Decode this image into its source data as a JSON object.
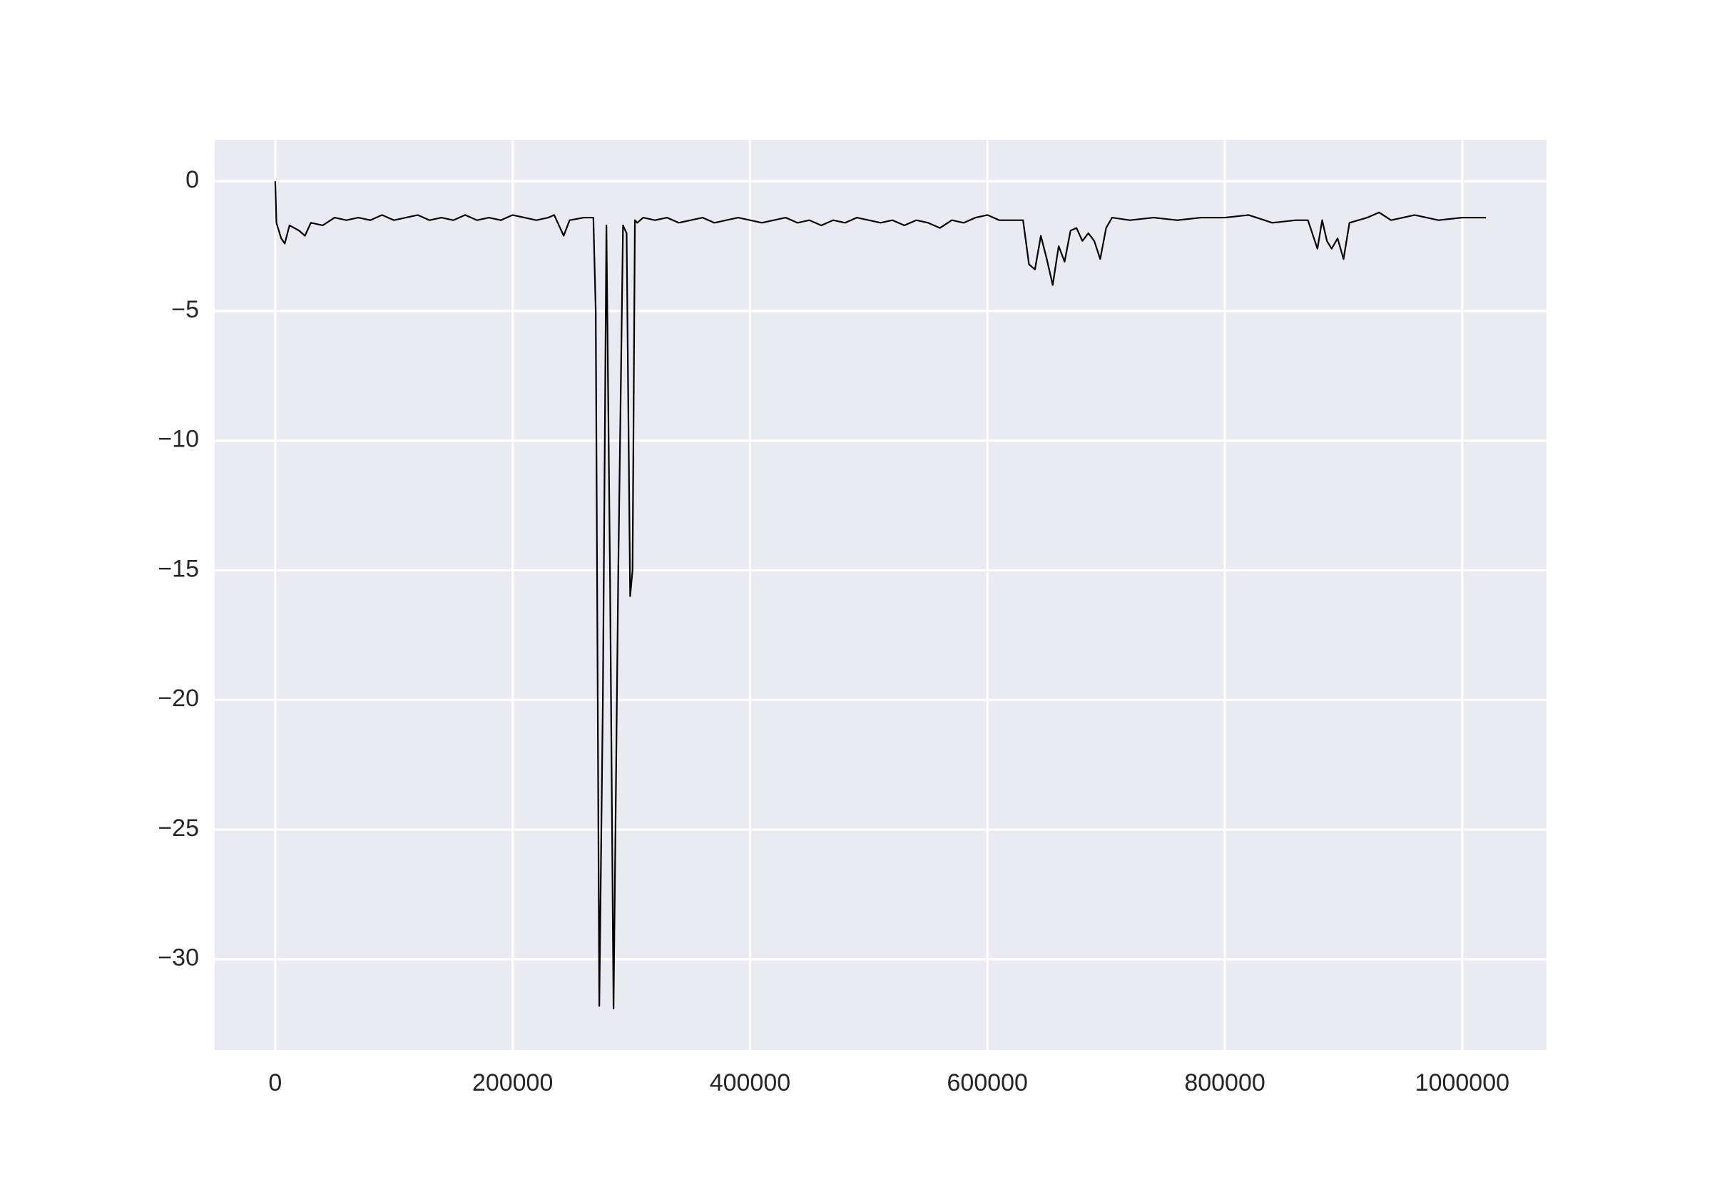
{
  "chart_data": {
    "type": "line",
    "x": [
      0,
      1000,
      5000,
      8000,
      12000,
      20000,
      25000,
      30000,
      40000,
      50000,
      60000,
      70000,
      80000,
      90000,
      100000,
      110000,
      120000,
      130000,
      140000,
      150000,
      160000,
      170000,
      180000,
      190000,
      200000,
      210000,
      220000,
      230000,
      235000,
      243000,
      248000,
      260000,
      268000,
      270000,
      273000,
      276000,
      279000,
      282000,
      285000,
      289000,
      293000,
      296000,
      299000,
      301000,
      303000,
      305000,
      310000,
      320000,
      330000,
      340000,
      350000,
      360000,
      370000,
      380000,
      390000,
      400000,
      410000,
      420000,
      430000,
      440000,
      450000,
      460000,
      470000,
      480000,
      490000,
      500000,
      510000,
      520000,
      530000,
      540000,
      550000,
      560000,
      570000,
      580000,
      590000,
      600000,
      610000,
      620000,
      630000,
      635000,
      640000,
      645000,
      650000,
      655000,
      660000,
      665000,
      670000,
      675000,
      680000,
      685000,
      690000,
      695000,
      700000,
      705000,
      720000,
      740000,
      760000,
      780000,
      800000,
      820000,
      840000,
      860000,
      870000,
      878000,
      882000,
      886000,
      890000,
      895000,
      900000,
      905000,
      920000,
      930000,
      940000,
      960000,
      980000,
      1000000,
      1020000
    ],
    "series": [
      {
        "color": "#000000",
        "values": [
          0,
          -1.6,
          -2.2,
          -2.4,
          -1.7,
          -1.9,
          -2.1,
          -1.6,
          -1.7,
          -1.4,
          -1.5,
          -1.4,
          -1.5,
          -1.3,
          -1.5,
          -1.4,
          -1.3,
          -1.5,
          -1.4,
          -1.5,
          -1.3,
          -1.5,
          -1.4,
          -1.5,
          -1.3,
          -1.4,
          -1.5,
          -1.4,
          -1.3,
          -2.1,
          -1.5,
          -1.4,
          -1.4,
          -5,
          -31.8,
          -20,
          -1.7,
          -15,
          -31.9,
          -15,
          -1.7,
          -2,
          -16,
          -15,
          -1.5,
          -1.6,
          -1.4,
          -1.5,
          -1.4,
          -1.6,
          -1.5,
          -1.4,
          -1.6,
          -1.5,
          -1.4,
          -1.5,
          -1.6,
          -1.5,
          -1.4,
          -1.6,
          -1.5,
          -1.7,
          -1.5,
          -1.6,
          -1.4,
          -1.5,
          -1.6,
          -1.5,
          -1.7,
          -1.5,
          -1.6,
          -1.8,
          -1.5,
          -1.6,
          -1.4,
          -1.3,
          -1.5,
          -1.5,
          -1.5,
          -3.2,
          -3.4,
          -2.1,
          -3.0,
          -4.0,
          -2.5,
          -3.1,
          -1.9,
          -1.8,
          -2.3,
          -2.0,
          -2.3,
          -3.0,
          -1.8,
          -1.4,
          -1.5,
          -1.4,
          -1.5,
          -1.4,
          -1.4,
          -1.3,
          -1.6,
          -1.5,
          -1.5,
          -2.6,
          -1.5,
          -2.3,
          -2.6,
          -2.2,
          -3.0,
          -1.6,
          -1.4,
          -1.2,
          -1.5,
          -1.3,
          -1.5,
          -1.4,
          -1.4
        ]
      }
    ],
    "xlim": [
      -51000,
      1071000
    ],
    "ylim": [
      -33.5,
      1.6
    ],
    "xticks": [
      0,
      200000,
      400000,
      600000,
      800000,
      1000000
    ],
    "yticks": [
      0,
      {
        "value": -5,
        "label": "−5"
      },
      {
        "value": -10,
        "label": "−10"
      },
      {
        "value": -15,
        "label": "−15"
      },
      {
        "value": -20,
        "label": "−20"
      },
      {
        "value": -25,
        "label": "−25"
      },
      {
        "value": -30,
        "label": "−30"
      }
    ],
    "grid": true,
    "background": "#eaeaf2"
  }
}
